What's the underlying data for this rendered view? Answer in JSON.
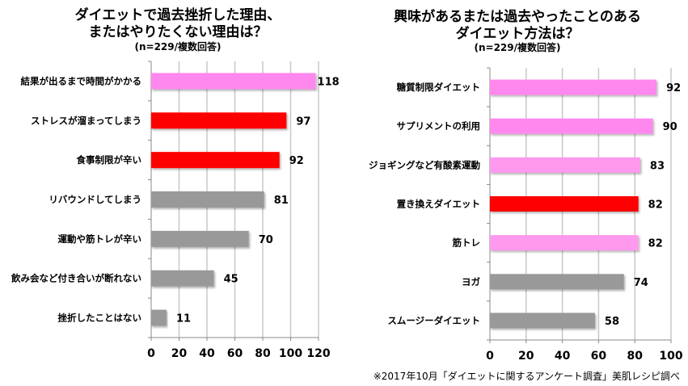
{
  "chart_data": [
    {
      "type": "bar",
      "orientation": "horizontal",
      "title": "ダイエットで過去挫折した理由、またはやりたくない理由は？",
      "title_lines": [
        "ダイエットで過去挫折した理由、",
        "またはやりたくない理由は？"
      ],
      "subtitle": "(n=229/複数回答)",
      "categories": [
        "結果が出るまで時間がかかる",
        "ストレスが溜まってしまう",
        "食事制限が辛い",
        "リバウンドしてしまう",
        "運動や筋トレが辛い",
        "飲み会など付き合いが断れない",
        "挫折したことはない"
      ],
      "values": [
        118,
        97,
        92,
        81,
        70,
        45,
        11
      ],
      "colors": [
        "#FF88EE",
        "#FF0000",
        "#FF0000",
        "#999999",
        "#999999",
        "#999999",
        "#999999"
      ],
      "xlabel": "",
      "ylabel": "",
      "xlim": [
        0,
        120
      ],
      "xticks": [
        0,
        20,
        40,
        60,
        80,
        100,
        120
      ],
      "grid": true,
      "legend": "none"
    },
    {
      "type": "bar",
      "orientation": "horizontal",
      "title": "興味があるまたは過去やったことのあるダイエット方法は？",
      "title_lines": [
        "興味があるまたは過去やったことのある",
        "ダイエット方法は？"
      ],
      "subtitle": "(n=229/複数回答)",
      "categories": [
        "糖質制限ダイエット",
        "サプリメントの利用",
        "ジョギングなど有酸素運動",
        "置き換えダイエット",
        "筋トレ",
        "ヨガ",
        "スムージーダイエット"
      ],
      "values": [
        92,
        90,
        83,
        82,
        82,
        74,
        58
      ],
      "colors": [
        "#FF88EE",
        "#FF88EE",
        "#FF99EE",
        "#FF0000",
        "#FF99EE",
        "#999999",
        "#999999"
      ],
      "xlabel": "",
      "ylabel": "",
      "xlim": [
        0,
        100
      ],
      "xticks": [
        0,
        20,
        40,
        60,
        80,
        100
      ],
      "grid": true,
      "legend": "none"
    }
  ],
  "footnote": "※2017年10月「ダイエットに関するアンケート調査」美肌レシピ調べ"
}
